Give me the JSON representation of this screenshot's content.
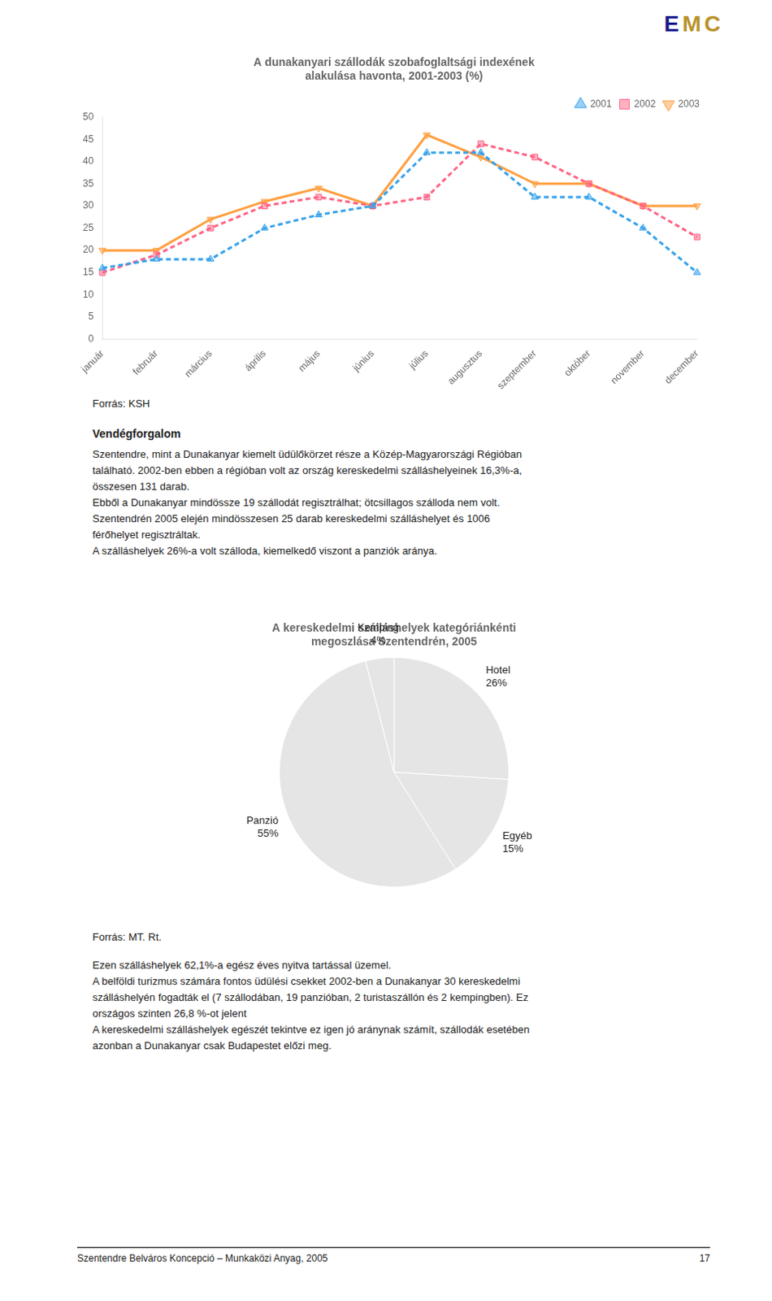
{
  "chart_data": [
    {
      "type": "line",
      "title": "A dunakanyari szállodák szobafoglaltsági indexének\nalakulása havonta, 2001-2003 (%)",
      "categories": [
        "január",
        "február",
        "március",
        "április",
        "május",
        "június",
        "július",
        "augusztus",
        "szeptember",
        "október",
        "november",
        "december"
      ],
      "series": [
        {
          "name": "2001",
          "values": [
            16,
            18,
            18,
            25,
            28,
            30,
            42,
            42,
            32,
            32,
            25,
            15
          ],
          "marker": "triangle_up",
          "line_style": "dashed"
        },
        {
          "name": "2002",
          "values": [
            15,
            19,
            25,
            30,
            32,
            30,
            32,
            44,
            41,
            35,
            30,
            23
          ],
          "marker": "square",
          "line_style": "dashed"
        },
        {
          "name": "2003",
          "values": [
            20,
            20,
            27,
            31,
            34,
            30,
            46,
            41,
            35,
            35,
            30,
            30
          ],
          "marker": "triangle_down",
          "line_style": "solid"
        }
      ],
      "ylim": [
        0,
        50
      ],
      "yticks": [
        0,
        5,
        10,
        15,
        20,
        25,
        30,
        35,
        40,
        45,
        50
      ],
      "grid": false,
      "legend": "upper right",
      "annotations": [
        "Forrás: KSH"
      ]
    },
    {
      "type": "pie",
      "title": "A kereskedelmi szálláshelyek kategóriánkénti\nmegoszlása Szentendrén, 2005",
      "categories": [
        "Hotel",
        "Egyéb",
        "Panzió",
        "Kemping"
      ],
      "values": [
        26,
        15,
        55,
        4
      ],
      "value_labels": [
        "26%",
        "15%",
        "55%",
        "4%"
      ],
      "data_labels": true,
      "annotations": [
        "Forrás: MT. Rt."
      ]
    }
  ],
  "logo": "EMC",
  "heading": "Vendégforgalom",
  "body_1": [
    "Szentendre, mint a Dunakanyar kiemelt üdülőkörzet része a Közép-Magyarországi Régióban",
    "található. 2002-ben ebben a régióban volt az ország kereskedelmi szálláshelyeinek 16,3%-a,",
    "összesen 131 darab.",
    "Ebből a Dunakanyar mindössze 19 szállodát regisztrálhat; ötcsillagos szálloda nem volt.",
    "Szentendrén 2005 elején mindösszesen 25 darab kereskedelmi szálláshelyet és 1006",
    "férőhelyet regisztráltak.",
    "A szálláshelyek 26%-a volt szálloda, kiemelkedő viszont a panziók aránya."
  ],
  "body_2": [
    "Ezen szálláshelyek 62,1%-a egész éves nyitva tartással üzemel.",
    "A belföldi turizmus számára fontos üdülési csekket 2002-ben a Dunakanyar 30 kereskedelmi",
    "szálláshelyén fogadták el (7 szállodában, 19 panzióban, 2 turistaszállón és 2 kempingben). Ez",
    "országos szinten 26,8 %-ot jelent",
    "A kereskedelmi szálláshelyek egészét tekintve ez igen jó aránynak számít, szállodák esetében",
    "azonban a Dunakanyar csak Budapestet előzi meg."
  ],
  "footer_left": "Szentendre Belváros Koncepció – Munkaközi Anyag, 2005",
  "footer_right": "17"
}
